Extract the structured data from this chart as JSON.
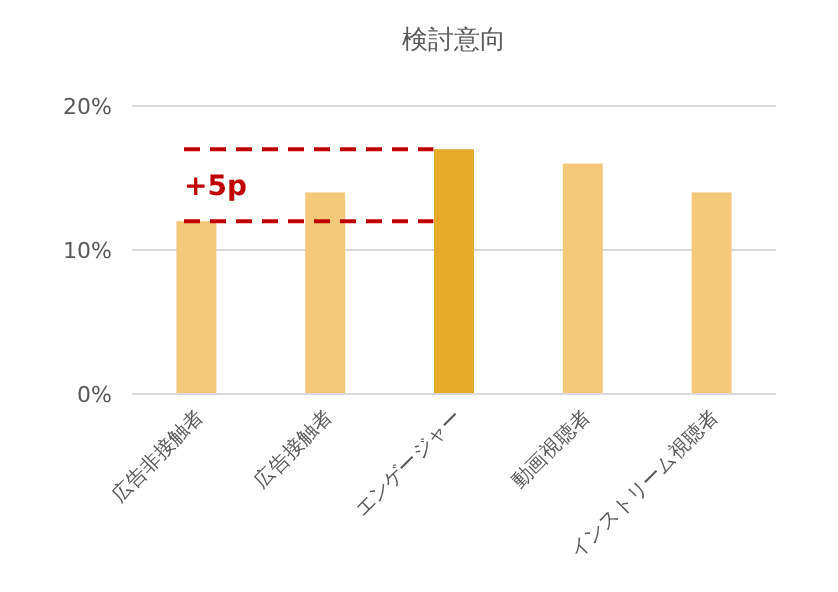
{
  "chart_data": {
    "type": "bar",
    "title": "検討意向",
    "categories": [
      "広告非接触者",
      "広告接触者",
      "エンゲージャー",
      "動画視聴者",
      "インストリーム視聴者"
    ],
    "values": [
      12,
      14,
      17,
      16,
      14
    ],
    "colors": [
      "#f5c97a",
      "#f5c97a",
      "#e8a92a",
      "#f5c97a",
      "#f5c97a"
    ],
    "ylim": [
      0,
      20
    ],
    "yticks": [
      {
        "value": 0,
        "label": "0%"
      },
      {
        "value": 10,
        "label": "10%"
      },
      {
        "value": 20,
        "label": "20%"
      }
    ],
    "grid": "y",
    "ref_lines": [
      {
        "axis": "y",
        "value": 17,
        "color": "#c00000",
        "line_style": "dashed"
      },
      {
        "axis": "y",
        "value": 12,
        "color": "#c00000",
        "line_style": "dashed"
      }
    ],
    "annotations": [
      "+5p"
    ]
  }
}
